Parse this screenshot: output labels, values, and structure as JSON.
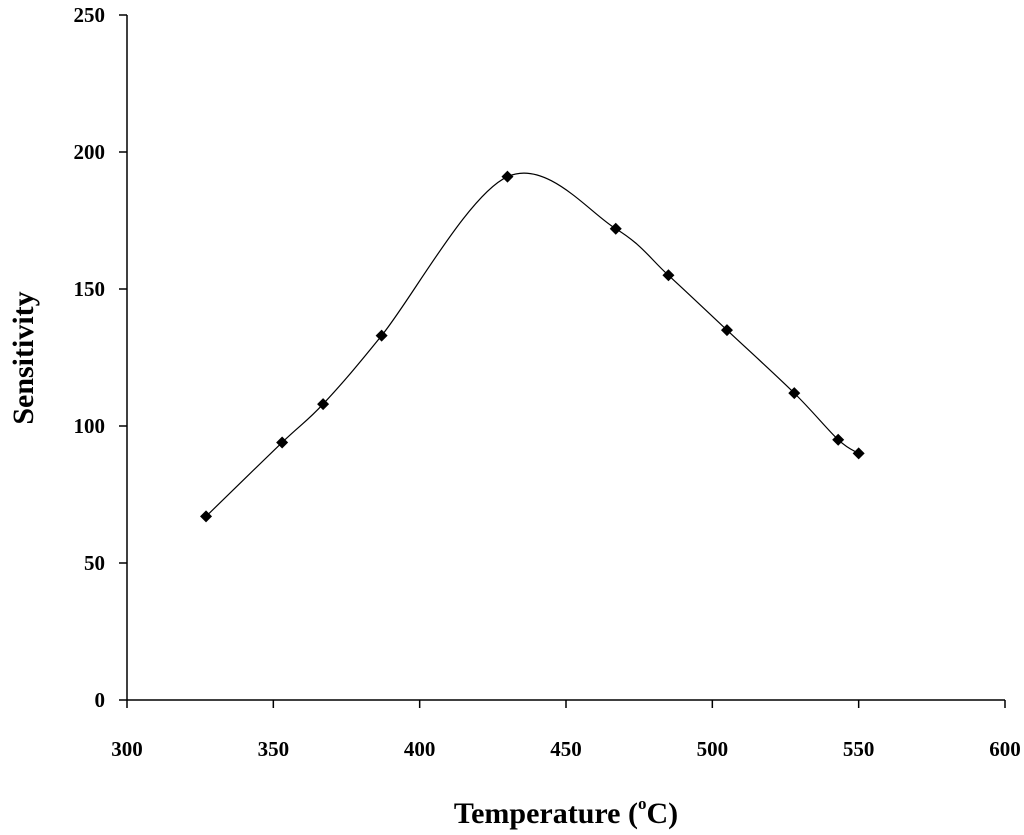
{
  "chart_data": {
    "type": "scatter",
    "title": "",
    "xlabel": "Temperature (",
    "xlabel_sup": "o",
    "xlabel_unit_end": "C)",
    "ylabel": "Sensitivity",
    "xlim": [
      300,
      600
    ],
    "ylim": [
      0,
      250
    ],
    "xticks": [
      300,
      350,
      400,
      450,
      500,
      550,
      600
    ],
    "yticks": [
      0,
      50,
      100,
      150,
      200,
      250
    ],
    "grid": false,
    "smoothed_line": true,
    "marker": "diamond",
    "series": [
      {
        "x": [
          327,
          353,
          367,
          387,
          430,
          467,
          485,
          505,
          528,
          543,
          550
        ],
        "y": [
          67,
          94,
          108,
          133,
          191,
          172,
          155,
          135,
          112,
          95,
          90
        ]
      }
    ]
  }
}
